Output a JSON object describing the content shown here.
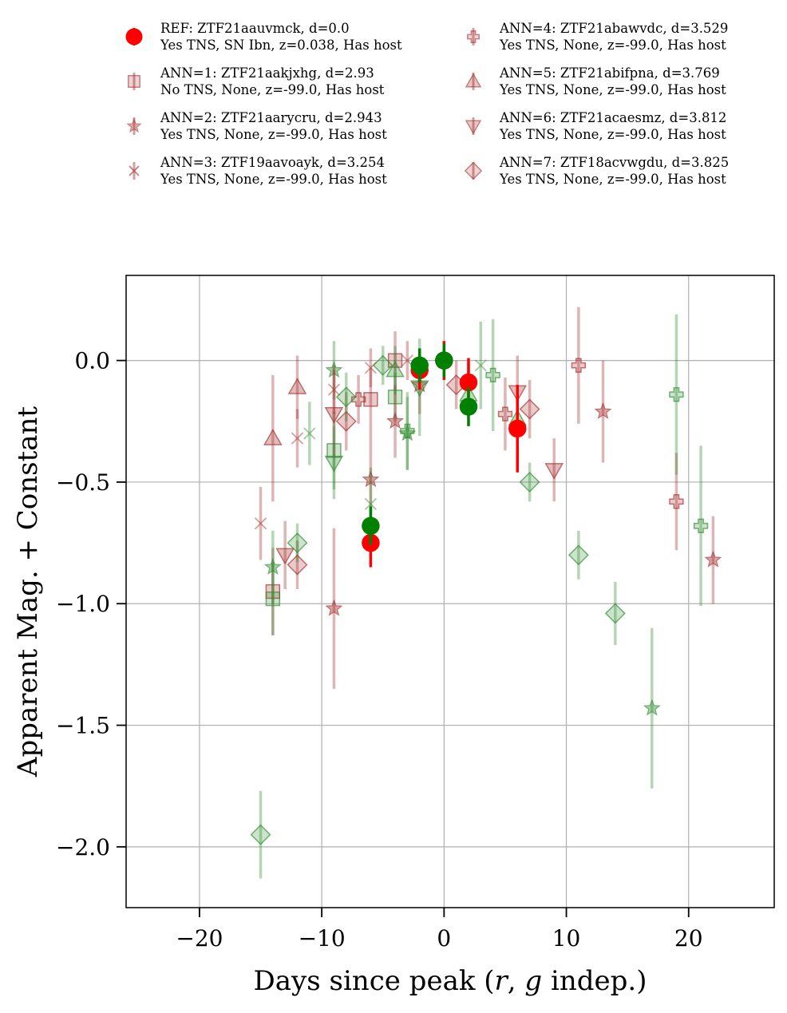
{
  "chart_data": {
    "type": "scatter",
    "xlabel": "Days since peak (r, g indep.)",
    "xlabel_parts": {
      "pre": "Days since peak (",
      "r": "r",
      "sep": ", ",
      "g": "g",
      "post": " indep.)"
    },
    "ylabel": "Apparent Mag. + Constant",
    "xlim": [
      -26,
      27
    ],
    "ylim": [
      -2.25,
      0.35
    ],
    "y_inverted": false,
    "grid": true,
    "xticks": [
      -20,
      -10,
      0,
      10,
      20
    ],
    "yticks": [
      0.0,
      -0.5,
      -1.0,
      -1.5,
      -2.0
    ],
    "xtick_labels": [
      "−20",
      "−10",
      "0",
      "10",
      "20"
    ],
    "ytick_labels": [
      "0.0",
      "−0.5",
      "−1.0",
      "−1.5",
      "−2.0"
    ],
    "legend_placement": "top, above plot, two columns",
    "band_colors": {
      "r": "#ff0000",
      "g": "#008000"
    },
    "neighbor_colors": {
      "r": "#a52a2a",
      "g": "#2e8b2e"
    },
    "series": [
      {
        "name": "REF: ZTF21aauvmck, d=0.0",
        "desc": "Yes TNS, SN Ibn, z=0.038, Has host",
        "marker": "circle",
        "r": [
          [
            -6,
            -0.75,
            0.1
          ],
          [
            -2,
            -0.04,
            0.08
          ],
          [
            0,
            0.0,
            0.08
          ],
          [
            2,
            -0.09,
            0.1
          ],
          [
            6,
            -0.28,
            0.18
          ]
        ],
        "g": [
          [
            -6,
            -0.68,
            0.08
          ],
          [
            -2,
            -0.02,
            0.07
          ],
          [
            0,
            0.0,
            0.07
          ],
          [
            2,
            -0.19,
            0.08
          ]
        ]
      },
      {
        "name": "ANN=1: ZTF21aakjxhg, d=2.93",
        "desc": "No TNS, None, z=-99.0, Has host",
        "marker": "square",
        "r": [
          [
            -14,
            -0.95,
            0.18
          ],
          [
            -6,
            -0.16,
            0.13
          ],
          [
            -4,
            0.0,
            0.12
          ]
        ],
        "g": [
          [
            -14,
            -0.98,
            0.15
          ],
          [
            -9,
            -0.37,
            0.16
          ],
          [
            -4,
            -0.15,
            0.1
          ]
        ]
      },
      {
        "name": "ANN=2: ZTF21aarycru, d=2.943",
        "desc": "Yes TNS, None, z=-99.0, Has host",
        "marker": "star",
        "r": [
          [
            -9,
            -1.02,
            0.33
          ],
          [
            -6,
            -0.49,
            0.2
          ],
          [
            -4,
            -0.25,
            0.15
          ],
          [
            -2,
            -0.1,
            0.12
          ],
          [
            13,
            -0.21,
            0.21
          ],
          [
            22,
            -0.82,
            0.18
          ]
        ],
        "g": [
          [
            -14,
            -0.85,
            0.15
          ],
          [
            -9,
            -0.04,
            0.12
          ],
          [
            -3,
            -0.3,
            0.15
          ],
          [
            17,
            -1.43,
            0.33
          ]
        ]
      },
      {
        "name": "ANN=3: ZTF19aavoayk, d=3.254",
        "desc": "Yes TNS, None, z=-99.0, Has host",
        "marker": "x",
        "r": [
          [
            -15,
            -0.67,
            0.15
          ],
          [
            -12,
            -0.32,
            0.12
          ],
          [
            -9,
            -0.12,
            0.1
          ],
          [
            -6,
            -0.03,
            0.08
          ],
          [
            -3,
            0.0,
            0.08
          ]
        ],
        "g": [
          [
            -11,
            -0.3,
            0.13
          ],
          [
            -6,
            -0.59,
            0.15
          ],
          [
            3,
            -0.02,
            0.18
          ]
        ]
      },
      {
        "name": "ANN=4: ZTF21abawvdc, d=3.529",
        "desc": "Yes TNS, None, z=-99.0, Has host",
        "marker": "plus",
        "r": [
          [
            -7,
            -0.16,
            0.1
          ],
          [
            5,
            -0.22,
            0.15
          ],
          [
            11,
            -0.02,
            0.24
          ],
          [
            19,
            -0.58,
            0.2
          ]
        ],
        "g": [
          [
            -3,
            -0.29,
            0.16
          ],
          [
            4,
            -0.06,
            0.23
          ],
          [
            19,
            -0.14,
            0.33
          ],
          [
            21,
            -0.68,
            0.33
          ]
        ]
      },
      {
        "name": "ANN=5: ZTF21abifpna, d=3.769",
        "desc": "Yes TNS, None, z=-99.0, Has host",
        "marker": "triangle-up",
        "r": [
          [
            -14,
            -0.32,
            0.26
          ],
          [
            -12,
            -0.11,
            0.13
          ]
        ],
        "g": [
          [
            -4,
            -0.04,
            0.1
          ],
          [
            2,
            -0.14,
            0.13
          ],
          [
            6,
            -0.24,
            0.13
          ]
        ]
      },
      {
        "name": "ANN=6: ZTF21acaesmz, d=3.812",
        "desc": "Yes TNS, None, z=-99.0, Has host",
        "marker": "triangle-down",
        "r": [
          [
            -13,
            -0.8,
            0.14
          ],
          [
            -9,
            -0.22,
            0.18
          ],
          [
            6,
            -0.13,
            0.15
          ],
          [
            9,
            -0.45,
            0.13
          ]
        ],
        "g": [
          [
            -9,
            -0.42,
            0.15
          ],
          [
            -2,
            -0.11,
            0.2
          ]
        ]
      },
      {
        "name": "ANN=7: ZTF18acvwgdu, d=3.825",
        "desc": "Yes TNS, None, z=-99.0, Has host",
        "marker": "diamond",
        "r": [
          [
            -12,
            -0.84,
            0.1
          ],
          [
            -8,
            -0.25,
            0.12
          ],
          [
            1,
            -0.1,
            0.1
          ],
          [
            7,
            -0.2,
            0.12
          ]
        ],
        "g": [
          [
            -15,
            -1.95,
            0.18
          ],
          [
            -12,
            -0.75,
            0.08
          ],
          [
            -8,
            -0.15,
            0.1
          ],
          [
            -5,
            -0.02,
            0.08
          ],
          [
            7,
            -0.5,
            0.08
          ],
          [
            11,
            -0.8,
            0.1
          ],
          [
            14,
            -1.04,
            0.13
          ]
        ]
      }
    ]
  }
}
